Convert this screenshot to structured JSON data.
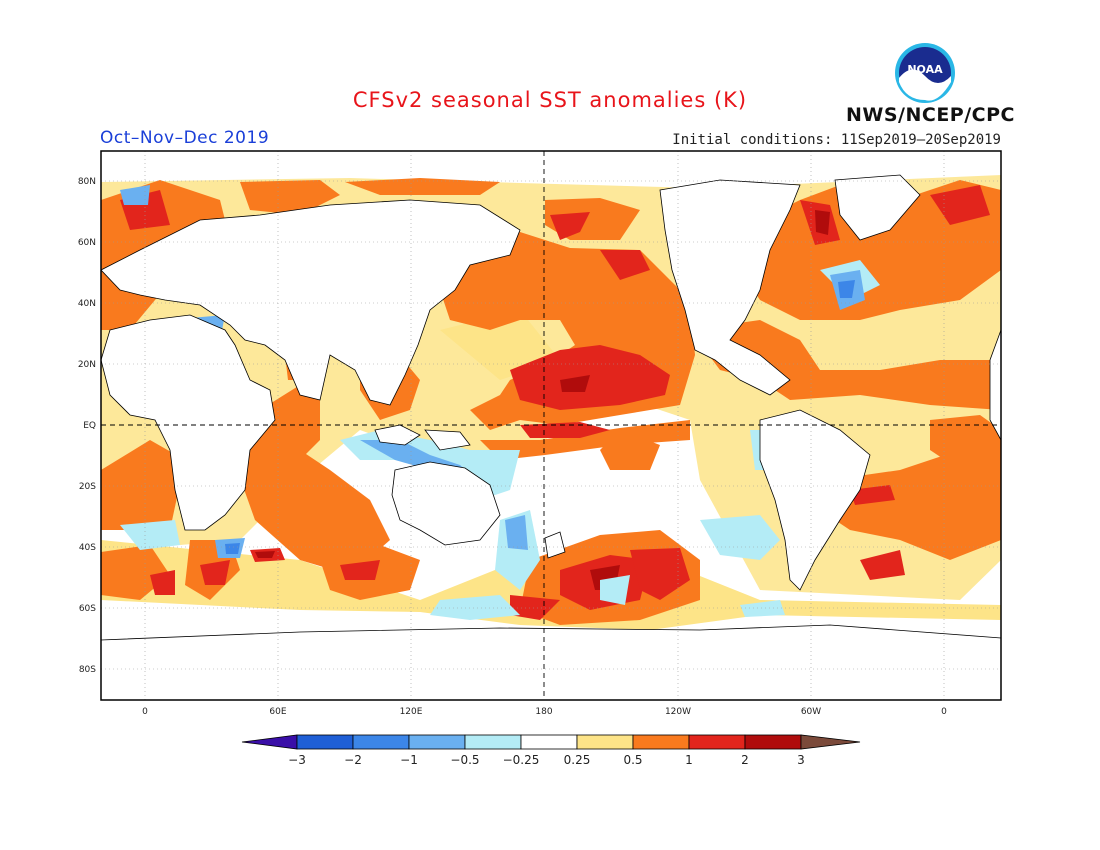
{
  "header": {
    "title": "CFSv2 seasonal SST anomalies (K)",
    "period": "Oct–Nov–Dec 2019",
    "initial_conditions": "Initial conditions: 11Sep2019–20Sep2019",
    "agency": "NWS/NCEP/CPC",
    "logo_text": "NOAA"
  },
  "map": {
    "projection": "equirectangular",
    "lon_range": [
      -20,
      382
    ],
    "lat_range": [
      -90,
      90
    ],
    "lat_labels": [
      "80N",
      "60N",
      "40N",
      "20N",
      "EQ",
      "20S",
      "40S",
      "60S",
      "80S"
    ],
    "lon_labels": [
      "0",
      "60E",
      "120E",
      "180",
      "120W",
      "60W",
      "0"
    ],
    "grid": "dotted",
    "reference_lines": [
      "equator",
      "dateline"
    ]
  },
  "colorbar": {
    "labels": [
      "−3",
      "−2",
      "−1",
      "−0.5",
      "−0.25",
      "0.25",
      "0.5",
      "1",
      "2",
      "3"
    ],
    "colors": [
      "#3a0fa8",
      "#1f5fd6",
      "#3c86e8",
      "#6ab0f0",
      "#b4ecf6",
      "#ffffff",
      "#fde488",
      "#f97a1e",
      "#e2251c",
      "#b00c0c",
      "#7b4a3a"
    ]
  }
}
